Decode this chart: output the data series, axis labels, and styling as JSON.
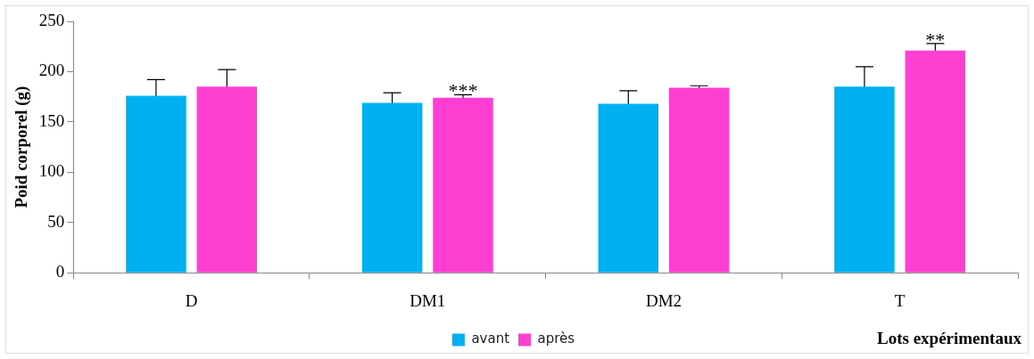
{
  "chart_data": {
    "type": "bar",
    "ylabel": "Poid corporel (g)",
    "xlabel": "Lots expérimentaux",
    "categories": [
      "D",
      "DM1",
      "DM2",
      "T"
    ],
    "series": [
      {
        "name": "avant",
        "color": "#00b0f0",
        "values": [
          176,
          169,
          168,
          185
        ],
        "errors": [
          16,
          10,
          13,
          20
        ]
      },
      {
        "name": "après",
        "color": "#ff3fd2",
        "values": [
          185,
          174,
          184,
          221
        ],
        "errors": [
          17,
          3,
          2,
          7
        ]
      }
    ],
    "ylim": [
      0,
      250
    ],
    "yticks": [
      0,
      50,
      100,
      150,
      200,
      250
    ],
    "grid": false,
    "legend": "bottom",
    "annotations": [
      "***",
      "**"
    ]
  }
}
